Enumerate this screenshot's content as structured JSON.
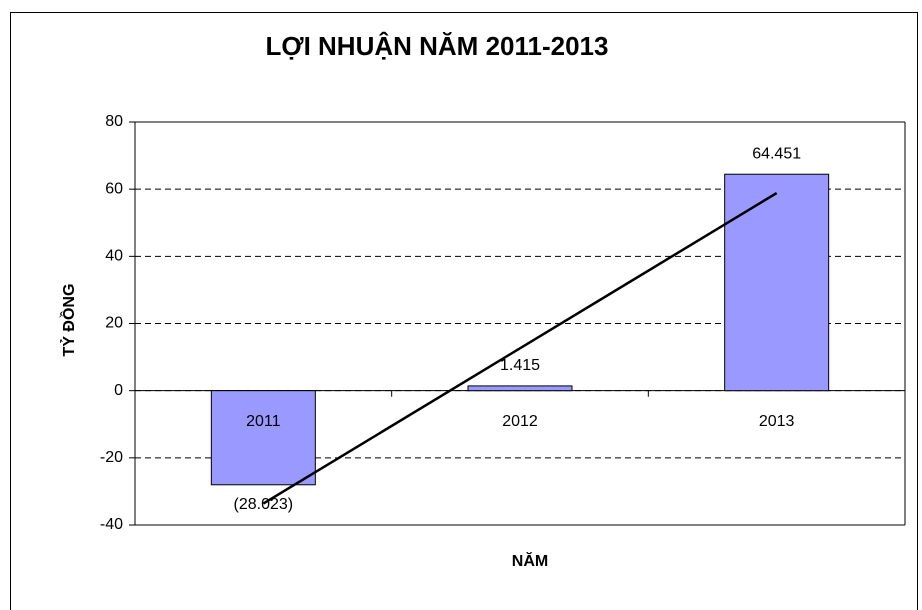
{
  "chart_data": {
    "type": "bar",
    "title": "LỢI NHUẬN NĂM 2011-2013",
    "x_label": "NĂM",
    "y_label": "TỶ ĐỒNG",
    "categories": [
      "2011",
      "2012",
      "2013"
    ],
    "values": [
      -28.023,
      1.415,
      64.451
    ],
    "value_labels": [
      "(28.023)",
      "1.415",
      "64.451"
    ],
    "color": "#9999ff",
    "trendline": "linear",
    "ylim": [
      -40,
      80
    ],
    "yticks": [
      -40,
      -20,
      0,
      20,
      40,
      60,
      80
    ],
    "grid": true
  }
}
